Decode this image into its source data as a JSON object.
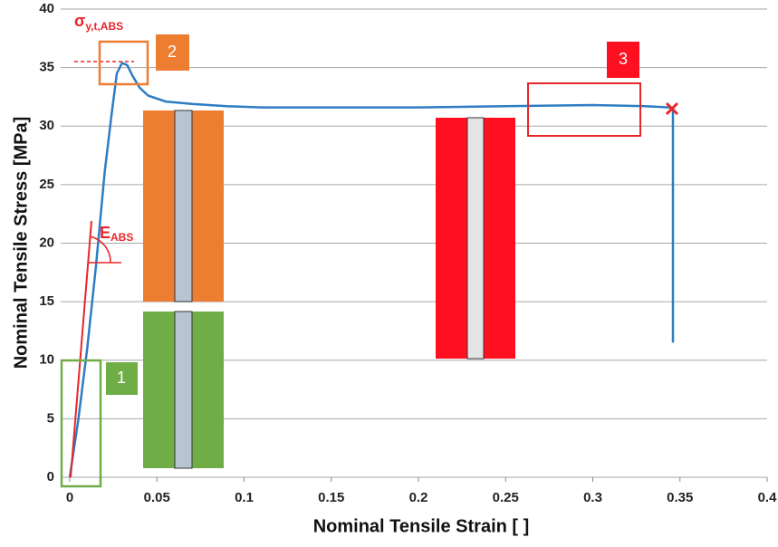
{
  "chart_data": {
    "type": "line",
    "x_label": "Nominal Tensile Strain [ ]",
    "y_label": "Nominal Tensile Stress [MPa]",
    "annotations": {
      "yield_symbol": "σ",
      "yield_sub": "y,t,ABS",
      "modulus_symbol": "E",
      "modulus_sub": "ABS",
      "region_1": "1",
      "region_2": "2",
      "region_3": "3"
    },
    "series": [
      {
        "color": "#2e7dc2",
        "x": [
          0,
          0.005,
          0.01,
          0.015,
          0.02,
          0.024,
          0.027,
          0.03,
          0.033,
          0.036,
          0.04,
          0.045,
          0.055,
          0.07,
          0.09,
          0.11,
          0.15,
          0.2,
          0.25,
          0.3,
          0.33,
          0.344,
          0.346,
          0.346
        ],
        "values": [
          0,
          5,
          11,
          18,
          26,
          31,
          34.5,
          35.4,
          35.2,
          34.3,
          33.3,
          32.6,
          32.1,
          31.9,
          31.7,
          31.6,
          31.6,
          31.6,
          31.7,
          31.8,
          31.7,
          31.6,
          31.4,
          11.5
        ]
      }
    ],
    "xlim": [
      0,
      0.4
    ],
    "xticks": [
      0,
      0.05,
      0.1,
      0.15,
      0.2,
      0.25,
      0.3,
      0.35,
      0.4
    ],
    "ylim": [
      0,
      40
    ],
    "yticks": [
      0,
      5,
      10,
      15,
      20,
      25,
      30,
      35,
      40
    ],
    "grid": true
  }
}
